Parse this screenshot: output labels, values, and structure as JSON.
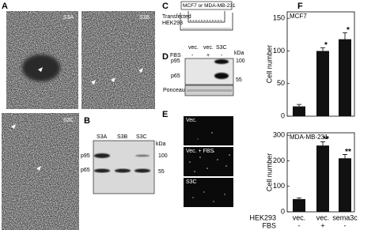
{
  "panels": {
    "A": {
      "label": "A",
      "images": [
        "S3A",
        "S3B",
        "S3C"
      ]
    },
    "B": {
      "label": "B",
      "lanes": [
        "S3A",
        "S3B",
        "S3C"
      ],
      "unit": "kDa",
      "markers": [
        "100",
        "55"
      ],
      "bands": [
        "p95",
        "p65"
      ]
    },
    "C": {
      "label": "C",
      "cells": "MCF7 or MDA-MB-231",
      "transfected": [
        "Transfected",
        "HEK293"
      ]
    },
    "D": {
      "label": "D",
      "lanes": [
        "vec.",
        "vec.",
        "S3C"
      ],
      "fbs_label": "FBS",
      "fbs": [
        "-",
        "+",
        "-"
      ],
      "unit": "kDa",
      "markers": [
        "100",
        "55"
      ],
      "bands": [
        "p95",
        "p65"
      ],
      "stain": "Ponceau"
    },
    "E": {
      "label": "E",
      "images": [
        "Vec.",
        "Vec. + FBS",
        "S3C"
      ]
    },
    "F": {
      "label": "F",
      "row_labels": [
        "HEK293",
        "FBS"
      ],
      "fbs": [
        "-",
        "+",
        "-"
      ]
    }
  },
  "chart_data": [
    {
      "type": "bar",
      "title": "MCF7",
      "ylabel": "Cell number",
      "categories": [
        null,
        null,
        null
      ],
      "values": [
        15,
        100,
        118
      ],
      "errors": [
        3,
        5,
        10
      ],
      "significance": [
        null,
        "*",
        "*"
      ],
      "color": "#111111",
      "ylim": [
        0,
        160
      ],
      "yticks": [
        0,
        50,
        100,
        150
      ]
    },
    {
      "type": "bar",
      "title": "MDA-MB-231",
      "ylabel": "Cell number",
      "categories": [
        "vec.",
        "vec.",
        "sema3c"
      ],
      "values": [
        50,
        260,
        210
      ],
      "errors": [
        5,
        15,
        15
      ],
      "significance": [
        null,
        "**",
        "**"
      ],
      "color": "#111111",
      "ylim": [
        0,
        310
      ],
      "yticks": [
        0,
        100,
        200,
        300
      ]
    }
  ]
}
